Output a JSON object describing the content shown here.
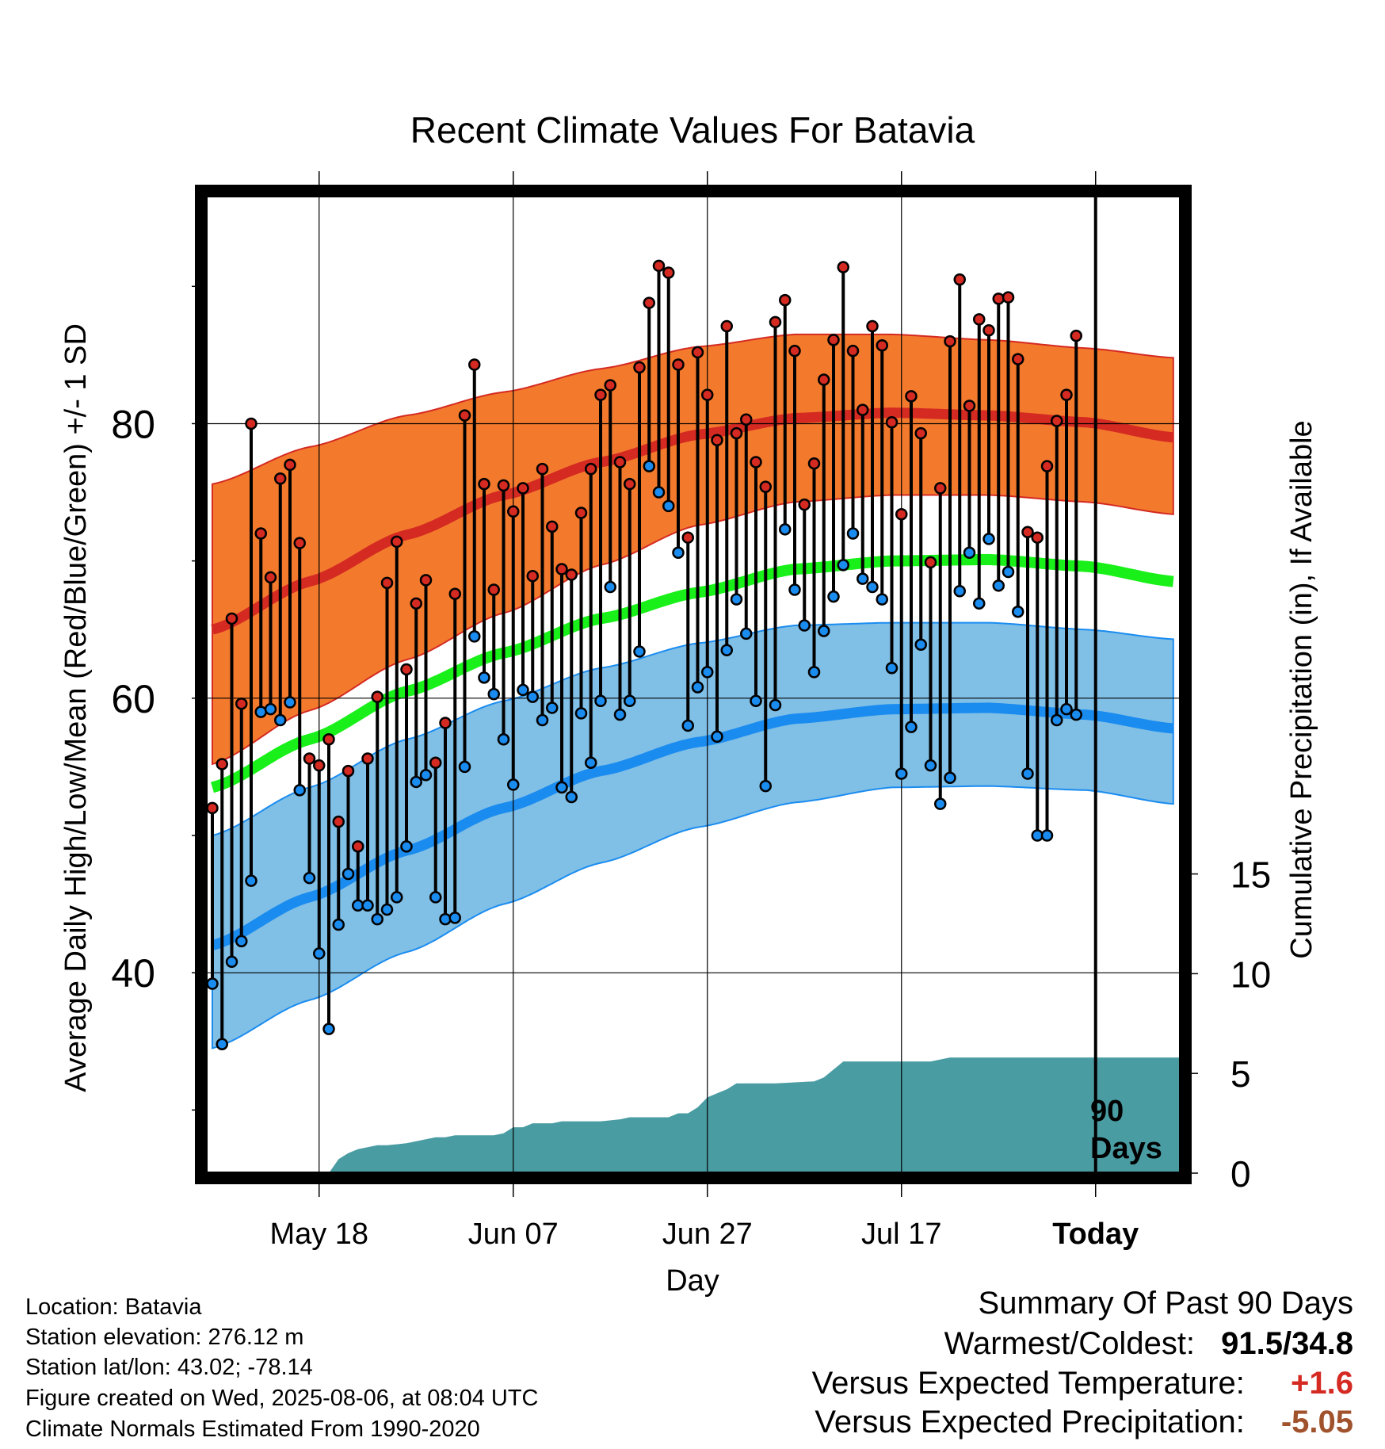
{
  "chart_data": {
    "type": "line",
    "title": "Recent Climate Values For Batavia",
    "xlabel": "Day",
    "ylabel": "Average Daily High/Low/Mean (Red/Blue/Green) +/- 1 SD",
    "y2label": "Cumulative Precipitation (in), If Available",
    "xticks": [
      "May 18",
      "Jun 07",
      "Jun 27",
      "Jul 17",
      "Today"
    ],
    "xtick_day_index": [
      11,
      31,
      51,
      71,
      91
    ],
    "yticks": [
      40,
      60,
      80
    ],
    "ylim": [
      25.4,
      96.6
    ],
    "y2ticks": [
      0,
      5,
      10,
      15
    ],
    "y2lim": [
      0,
      49
    ],
    "marker_label": "90 Days",
    "colors": {
      "high_band": "#f37a2d",
      "high_mean": "#d42a22",
      "low_band": "#80bfe6",
      "low_mean": "#1a8cf0",
      "mean": "#19f019",
      "precip": "#4a9ca3",
      "high_dot": "#d42a22",
      "low_dot": "#1a8cf0"
    },
    "normals": {
      "day_index": [
        0,
        10,
        20,
        30,
        40,
        50,
        60,
        70,
        80,
        90,
        99
      ],
      "high_mean": [
        65.0,
        68.5,
        71.9,
        74.8,
        77.2,
        79.2,
        80.4,
        80.8,
        80.6,
        80.1,
        79.0
      ],
      "high_plus_sd": [
        75.6,
        78.3,
        80.6,
        82.3,
        84.0,
        85.6,
        86.5,
        86.5,
        86.1,
        85.5,
        84.8
      ],
      "high_minus_sd": [
        55.2,
        59.1,
        62.8,
        66.2,
        69.7,
        72.6,
        74.3,
        74.8,
        74.8,
        74.3,
        73.4
      ],
      "low_mean": [
        42.0,
        45.5,
        48.9,
        52.0,
        54.7,
        56.8,
        58.5,
        59.2,
        59.3,
        58.8,
        57.8
      ],
      "low_plus_sd": [
        50.0,
        53.5,
        57.0,
        59.8,
        62.2,
        64.0,
        65.3,
        65.5,
        65.5,
        65.0,
        64.3
      ],
      "low_minus_sd": [
        34.5,
        38.0,
        41.5,
        45.0,
        48.0,
        50.6,
        52.4,
        53.5,
        53.6,
        53.3,
        52.3
      ],
      "mean": [
        53.5,
        57.0,
        60.5,
        63.3,
        65.8,
        67.7,
        69.4,
        70.0,
        70.1,
        69.6,
        68.5
      ]
    },
    "observed": {
      "high": [
        52.0,
        55.2,
        65.8,
        59.6,
        80.0,
        72.0,
        68.8,
        76.0,
        77.0,
        71.3,
        55.6,
        55.1,
        57.0,
        51.0,
        54.7,
        49.2,
        55.6,
        60.1,
        68.4,
        71.4,
        62.1,
        66.9,
        68.6,
        55.3,
        58.2,
        67.6,
        80.6,
        84.3,
        75.6,
        67.9,
        75.5,
        73.6,
        75.3,
        68.9,
        76.7,
        72.5,
        69.4,
        69.0,
        73.5,
        76.7,
        82.1,
        82.8,
        77.2,
        75.6,
        84.1,
        88.8,
        91.5,
        91.0,
        84.3,
        71.7,
        85.2,
        82.1,
        78.8,
        87.1,
        79.3,
        80.3,
        77.2,
        75.4,
        87.4,
        89.0,
        85.3,
        74.1,
        77.1,
        83.2,
        86.1,
        91.4,
        85.3,
        81.0,
        87.1,
        85.7,
        80.1,
        73.4,
        82.0,
        79.3,
        69.9,
        75.3,
        86.0,
        90.5,
        81.3,
        87.6,
        86.8,
        89.1,
        89.2,
        84.7,
        72.1,
        71.7,
        76.9,
        80.2,
        82.1,
        86.4
      ],
      "low": [
        39.2,
        34.8,
        40.8,
        42.3,
        46.7,
        59.0,
        59.2,
        58.4,
        59.7,
        53.3,
        46.9,
        41.4,
        35.9,
        43.5,
        47.2,
        44.9,
        44.9,
        43.9,
        44.6,
        45.5,
        49.2,
        53.9,
        54.4,
        45.5,
        43.9,
        44.0,
        55.0,
        64.5,
        61.5,
        60.3,
        57.0,
        53.7,
        60.6,
        60.1,
        58.4,
        59.3,
        53.5,
        52.8,
        58.9,
        55.3,
        59.8,
        68.1,
        58.8,
        59.8,
        63.4,
        76.9,
        75.0,
        74.0,
        70.6,
        58.0,
        60.8,
        61.9,
        57.2,
        63.5,
        67.2,
        64.7,
        59.8,
        53.6,
        59.5,
        72.3,
        67.9,
        65.3,
        61.9,
        64.9,
        67.4,
        69.7,
        72.0,
        68.7,
        68.1,
        67.2,
        62.2,
        54.5,
        57.9,
        63.9,
        55.1,
        52.3,
        54.2,
        67.8,
        70.6,
        66.9,
        71.6,
        68.2,
        69.2,
        66.3,
        54.5,
        50.0,
        50.0,
        58.4,
        59.2,
        58.8
      ]
    },
    "precip": {
      "day_index": [
        12,
        13,
        14,
        15,
        16,
        17,
        18,
        20,
        21,
        22,
        23,
        24,
        25,
        27,
        28,
        29,
        30,
        31,
        32,
        33,
        34,
        35,
        36,
        38,
        40,
        42,
        43,
        44,
        45,
        47,
        48,
        49,
        50,
        51,
        52,
        53,
        54,
        56,
        58,
        62,
        63,
        64,
        65,
        66,
        70,
        74,
        76,
        78,
        80,
        82,
        84,
        90,
        99
      ],
      "values": [
        0.0,
        0.7,
        1.0,
        1.2,
        1.3,
        1.4,
        1.4,
        1.5,
        1.6,
        1.7,
        1.8,
        1.8,
        1.9,
        1.9,
        1.9,
        1.9,
        2.0,
        2.3,
        2.3,
        2.5,
        2.5,
        2.5,
        2.6,
        2.6,
        2.6,
        2.7,
        2.8,
        2.8,
        2.8,
        2.8,
        3.0,
        3.0,
        3.3,
        3.8,
        4.0,
        4.2,
        4.5,
        4.5,
        4.5,
        4.6,
        4.8,
        5.2,
        5.6,
        5.6,
        5.6,
        5.6,
        5.8,
        5.8,
        5.8,
        5.8,
        5.8,
        5.8,
        5.8
      ]
    }
  },
  "footer": {
    "location": "Location: Batavia",
    "elevation": "Station elevation: 276.12 m",
    "latlon": "Station lat/lon: 43.02; -78.14",
    "created": "Figure created on Wed, 2025-08-06, at 08:04 UTC",
    "normals": "Climate Normals Estimated From 1990-2020"
  },
  "summary": {
    "title": "Summary Of Past 90 Days",
    "warmest_label": "Warmest/Coldest:",
    "warmest_value": "91.5/34.8",
    "temp_label": "Versus Expected Temperature:",
    "temp_value": "+1.6",
    "temp_color": "#d42a22",
    "precip_label": "Versus Expected Precipitation:",
    "precip_value": "-5.05",
    "precip_color": "#a0522d"
  }
}
